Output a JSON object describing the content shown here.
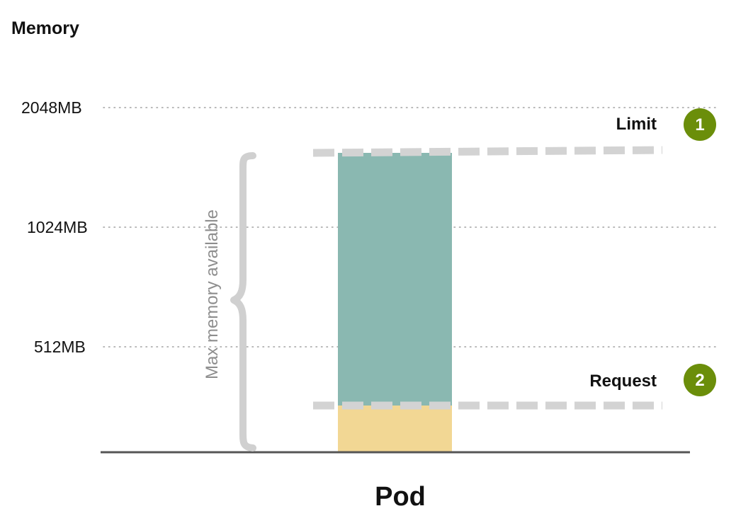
{
  "y_axis": {
    "title": "Memory",
    "ticks": [
      "2048MB",
      "1024MB",
      "512MB"
    ]
  },
  "markers": {
    "limit": {
      "label": "Limit",
      "badge": "1"
    },
    "request": {
      "label": "Request",
      "badge": "2"
    }
  },
  "bracket": {
    "label": "Max memory available"
  },
  "x_axis": {
    "label": "Pod"
  },
  "colors": {
    "usage_bar": "#8ab8b1",
    "request_bar": "#f2d794",
    "badge": "#6b8e0a",
    "dashed_line": "#d3d3d3",
    "axis_line": "#555555",
    "grid_dots": "#a0a0a0"
  }
}
